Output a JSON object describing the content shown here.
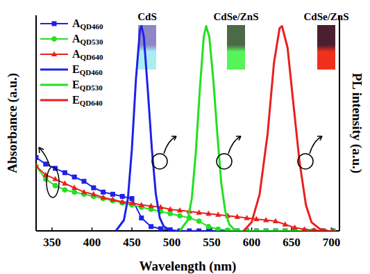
{
  "chart_data": {
    "type": "line",
    "xlabel": "Wavelength (nm)",
    "ylabel": "Absorbance (a.u.)",
    "y2label": "PL intensity (a.u.)",
    "annotations": [
      "CdS",
      "CdSe/ZnS",
      "CdSe/ZnS"
    ],
    "xlim": [
      330,
      710
    ],
    "xticks": [
      350,
      400,
      450,
      500,
      550,
      600,
      650,
      700
    ],
    "ylim": [
      0,
      1
    ],
    "y2lim": [
      0,
      1
    ],
    "tick_labels": "x",
    "grid": false,
    "legend": "top-left",
    "series": [
      {
        "name": "AQD460",
        "color": "#1e22e6",
        "marker": "square",
        "line_style": "solid",
        "x": [
          330,
          342,
          354,
          366,
          378,
          390,
          402,
          414,
          426,
          438,
          450,
          462,
          474,
          486,
          498,
          510,
          522,
          534,
          546,
          558,
          570,
          582,
          594,
          606,
          618,
          630,
          642,
          654,
          666,
          678,
          690,
          702
        ],
        "values": [
          0.34,
          0.31,
          0.29,
          0.27,
          0.25,
          0.23,
          0.2,
          0.18,
          0.17,
          0.16,
          0.15,
          0.06,
          0.02,
          0.01,
          0.005,
          0,
          0,
          0,
          0,
          0,
          0,
          0,
          0,
          0,
          0,
          0,
          0,
          0,
          0,
          0,
          0,
          0
        ]
      },
      {
        "name": "AQD530",
        "color": "#22e022",
        "marker": "circle",
        "line_style": "solid",
        "x": [
          330,
          342,
          354,
          366,
          378,
          390,
          402,
          414,
          426,
          438,
          450,
          462,
          474,
          486,
          498,
          510,
          522,
          534,
          546,
          558,
          570,
          582,
          594,
          606,
          618,
          630,
          642,
          654,
          666,
          678,
          690,
          702
        ],
        "values": [
          0.3,
          0.24,
          0.21,
          0.19,
          0.18,
          0.17,
          0.16,
          0.15,
          0.14,
          0.13,
          0.12,
          0.11,
          0.1,
          0.09,
          0.08,
          0.07,
          0.06,
          0.045,
          0.02,
          0.008,
          0.003,
          0,
          0,
          0,
          0,
          0,
          0,
          0,
          0,
          0,
          0,
          0
        ]
      },
      {
        "name": "AQD640",
        "color": "#e8201e",
        "marker": "triangle",
        "line_style": "solid",
        "x": [
          330,
          342,
          354,
          366,
          378,
          390,
          402,
          414,
          426,
          438,
          450,
          462,
          474,
          486,
          498,
          510,
          522,
          534,
          546,
          558,
          570,
          582,
          594,
          606,
          618,
          630,
          642,
          654,
          666,
          678,
          690,
          702
        ],
        "values": [
          0.3,
          0.26,
          0.24,
          0.22,
          0.2,
          0.18,
          0.17,
          0.155,
          0.145,
          0.135,
          0.13,
          0.12,
          0.115,
          0.11,
          0.1,
          0.095,
          0.09,
          0.085,
          0.08,
          0.075,
          0.07,
          0.065,
          0.06,
          0.055,
          0.05,
          0.045,
          0.03,
          0.015,
          0.007,
          0.003,
          0,
          0
        ]
      },
      {
        "name": "EQD460",
        "color": "#1e22e6",
        "line_style": "solid",
        "axis": "y2",
        "x": [
          430,
          440,
          445,
          450,
          455,
          460,
          462,
          465,
          470,
          475,
          480,
          485,
          490,
          500
        ],
        "values": [
          0,
          0.05,
          0.15,
          0.38,
          0.7,
          0.93,
          0.95,
          0.9,
          0.65,
          0.38,
          0.17,
          0.06,
          0.02,
          0
        ]
      },
      {
        "name": "EQD530",
        "color": "#22e022",
        "line_style": "solid",
        "axis": "y2",
        "x": [
          510,
          520,
          525,
          530,
          535,
          540,
          543,
          547,
          552,
          557,
          562,
          567,
          572,
          580
        ],
        "values": [
          0,
          0.05,
          0.15,
          0.36,
          0.65,
          0.9,
          0.95,
          0.9,
          0.7,
          0.45,
          0.22,
          0.09,
          0.03,
          0
        ]
      },
      {
        "name": "EQD640",
        "color": "#e8201e",
        "line_style": "solid",
        "axis": "y2",
        "x": [
          590,
          600,
          610,
          620,
          628,
          635,
          638,
          645,
          652,
          660,
          668,
          675,
          685,
          695
        ],
        "values": [
          0,
          0.04,
          0.17,
          0.45,
          0.78,
          0.94,
          0.95,
          0.85,
          0.6,
          0.32,
          0.12,
          0.04,
          0.01,
          0
        ]
      }
    ]
  }
}
